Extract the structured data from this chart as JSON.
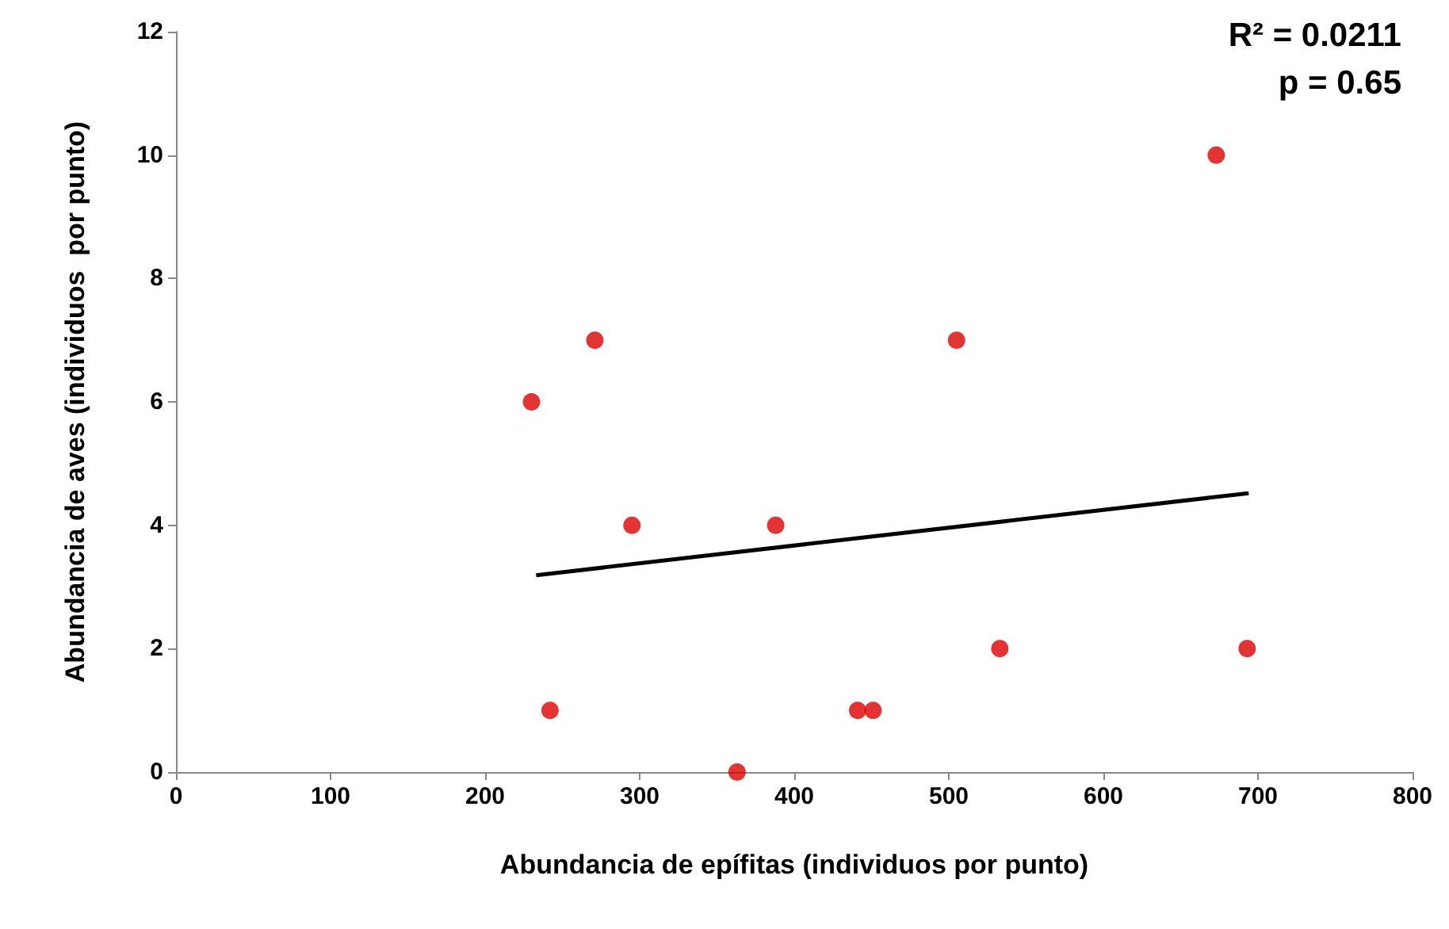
{
  "chart_data": {
    "type": "scatter",
    "xlabel": "Abundancia de epífitas (individuos por punto)",
    "ylabel": "Abundancia de aves (individuos  por punto)",
    "annotations": [
      "R² = 0.0211",
      "p = 0.65"
    ],
    "xlim": [
      0,
      800
    ],
    "xticks": [
      0,
      100,
      200,
      300,
      400,
      500,
      600,
      700,
      800
    ],
    "ylim": [
      0,
      12
    ],
    "yticks": [
      0,
      2,
      4,
      6,
      8,
      10,
      12
    ],
    "grid": false,
    "series": [
      {
        "marker": "circle",
        "color": "#dd0000",
        "x": [
          230,
          242,
          271,
          295,
          363,
          388,
          441,
          451,
          505,
          533,
          673,
          693
        ],
        "values": [
          6,
          1,
          7,
          4,
          0,
          4,
          1,
          1,
          7,
          2,
          10,
          2
        ]
      },
      {
        "type": "line",
        "color": "#000000",
        "x": [
          233,
          694
        ],
        "values": [
          3.19,
          4.52
        ]
      }
    ]
  }
}
